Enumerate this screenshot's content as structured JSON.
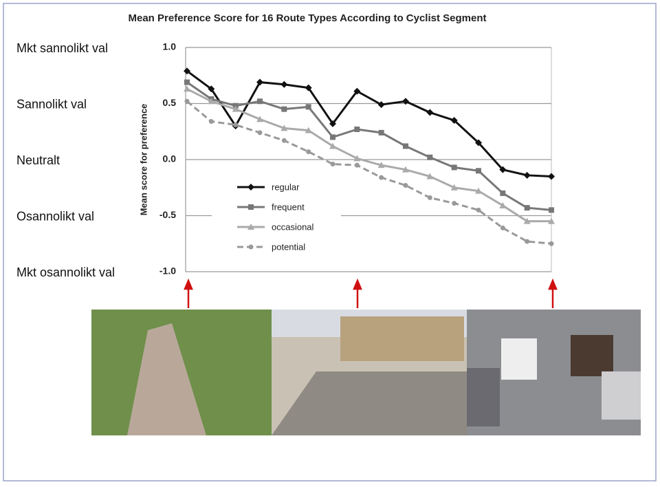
{
  "chart_data": {
    "type": "line",
    "title": "Mean Preference Score for 16 Route Types According to Cyclist Segment",
    "y_label": "Mean score for preference",
    "categories": [
      null,
      null,
      null,
      null,
      null,
      null,
      null,
      null,
      null,
      null,
      null,
      null,
      null,
      null,
      null,
      null
    ],
    "series": [
      {
        "name": "regular",
        "color": "#111111",
        "marker": "diamond",
        "dashed": false,
        "values": [
          0.79,
          0.63,
          0.3,
          0.69,
          0.67,
          0.64,
          0.32,
          0.61,
          0.49,
          0.52,
          0.42,
          0.35,
          0.15,
          -0.09,
          -0.14,
          -0.15
        ]
      },
      {
        "name": "frequent",
        "color": "#777777",
        "marker": "square",
        "dashed": false,
        "values": [
          0.69,
          0.54,
          0.48,
          0.52,
          0.45,
          0.47,
          0.2,
          0.27,
          0.24,
          0.12,
          0.02,
          -0.07,
          -0.1,
          -0.3,
          -0.43,
          -0.45
        ]
      },
      {
        "name": "occasional",
        "color": "#aaaaaa",
        "marker": "triangle",
        "dashed": false,
        "values": [
          0.63,
          0.52,
          0.45,
          0.36,
          0.28,
          0.26,
          0.12,
          0.01,
          -0.05,
          -0.09,
          -0.15,
          -0.25,
          -0.28,
          -0.41,
          -0.55,
          -0.55
        ]
      },
      {
        "name": "potential",
        "color": "#999999",
        "marker": "circle",
        "dashed": true,
        "values": [
          0.52,
          0.34,
          0.31,
          0.24,
          0.17,
          0.07,
          -0.04,
          -0.05,
          -0.16,
          -0.23,
          -0.34,
          -0.39,
          -0.45,
          -0.61,
          -0.73,
          -0.75
        ]
      }
    ],
    "ylim": [
      -1.0,
      1.0
    ],
    "yticks": [
      {
        "value": 1.0,
        "label": "1.0"
      },
      0.5,
      {
        "value": 0.0,
        "label": "0.0"
      },
      -0.5,
      {
        "value": -1.0,
        "label": "-1.0"
      }
    ],
    "grid": true,
    "side_labels": [
      "Mkt sannolikt val",
      "Sannolikt val",
      "Neutralt",
      "Osannolikt val",
      "Mkt osannolikt val"
    ]
  }
}
